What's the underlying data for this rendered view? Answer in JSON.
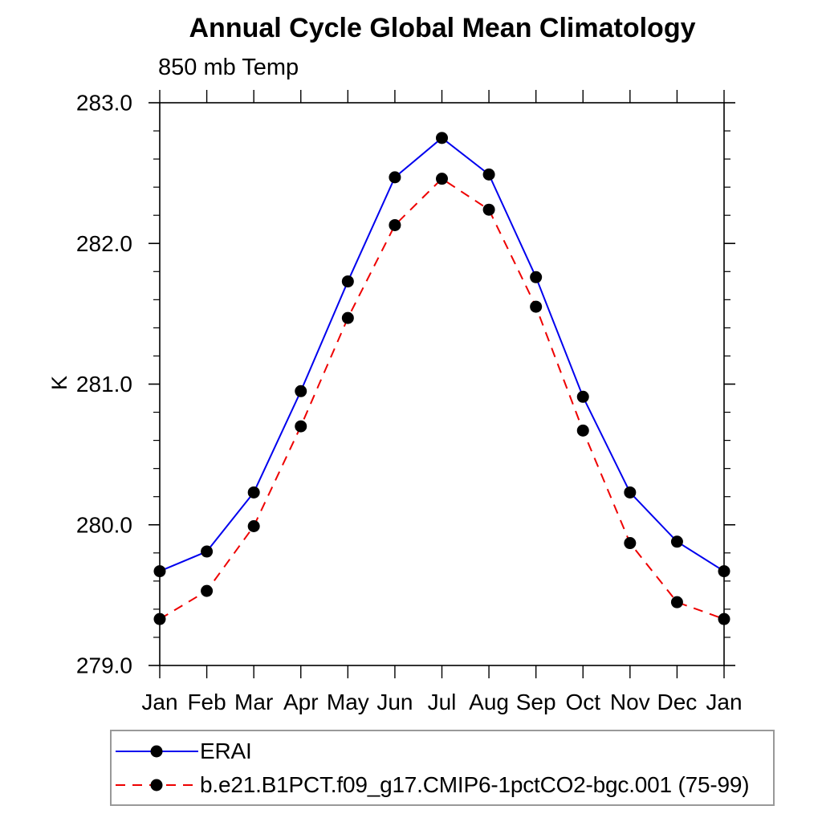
{
  "title": "Annual Cycle Global Mean Climatology",
  "subtitle": "850 mb Temp",
  "ylabel": "K",
  "chart_data": {
    "type": "line",
    "title": "Annual Cycle Global Mean Climatology",
    "subtitle": "850 mb Temp",
    "ylabel": "K",
    "xlabel": "",
    "categories": [
      "Jan",
      "Feb",
      "Mar",
      "Apr",
      "May",
      "Jun",
      "Jul",
      "Aug",
      "Sep",
      "Oct",
      "Nov",
      "Dec",
      "Jan"
    ],
    "series": [
      {
        "name": "ERAI",
        "color": "#0000ee",
        "line_style": "solid",
        "marker": "circle",
        "marker_color": "#000000",
        "values": [
          279.67,
          279.81,
          280.23,
          280.95,
          281.73,
          282.47,
          282.75,
          282.49,
          281.76,
          280.91,
          280.23,
          279.88,
          279.67
        ]
      },
      {
        "name": "b.e21.B1PCT.f09_g17.CMIP6-1pctCO2-bgc.001 (75-99)",
        "color": "#ee0000",
        "line_style": "dashed",
        "marker": "circle",
        "marker_color": "#000000",
        "values": [
          279.33,
          279.53,
          279.99,
          280.7,
          281.47,
          282.13,
          282.46,
          282.24,
          281.55,
          280.67,
          279.87,
          279.45,
          279.33
        ]
      }
    ],
    "ylim": [
      279.0,
      283.0
    ],
    "yticks_major": [
      279.0,
      280.0,
      281.0,
      282.0,
      283.0
    ],
    "ytick_labels": [
      "279.0",
      "280.0",
      "281.0",
      "282.0",
      "283.0"
    ],
    "y_minor_step": 0.2,
    "grid": false,
    "legend_position": "bottom",
    "axis_color": "#000000",
    "text_color": "#000000"
  }
}
